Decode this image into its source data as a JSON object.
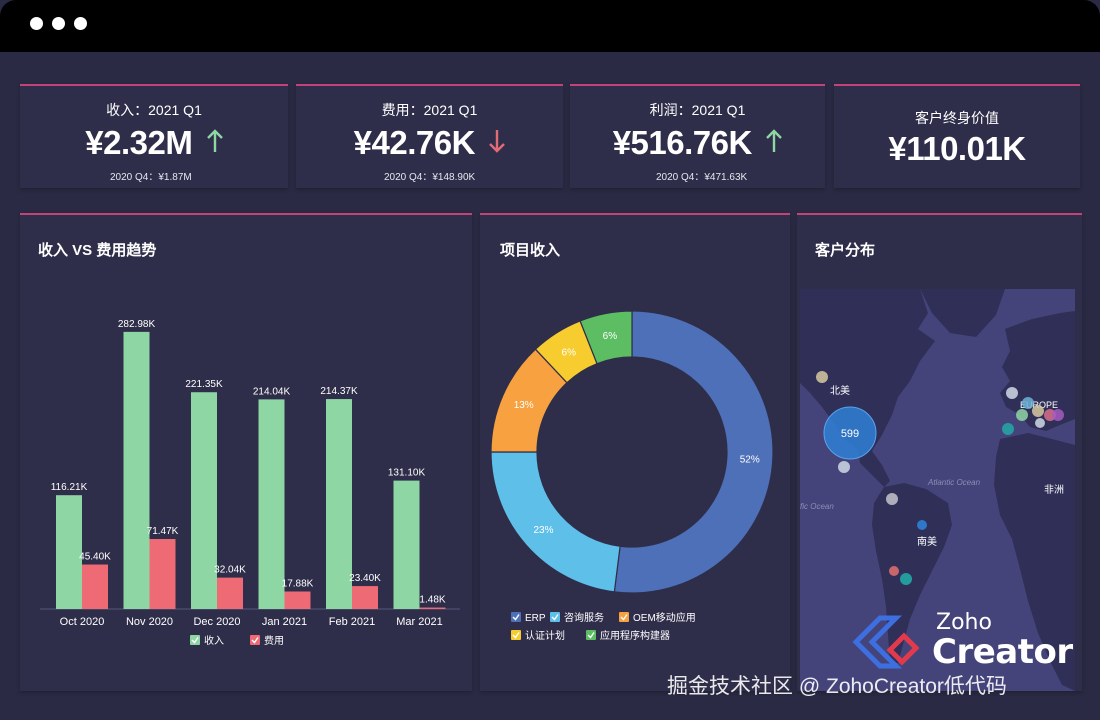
{
  "kpis": [
    {
      "title": "收入：2021 Q1",
      "value": "¥2.32M",
      "trend": "up",
      "prev": "2020 Q4：¥1.87M"
    },
    {
      "title": "费用：2021 Q1",
      "value": "¥42.76K",
      "trend": "down",
      "prev": "2020 Q4：¥148.90K"
    },
    {
      "title": "利润：2021 Q1",
      "value": "¥516.76K",
      "trend": "up",
      "prev": "2020 Q4：¥471.63K"
    },
    {
      "title": "客户终身价值",
      "value": "¥110.01K",
      "trend": "",
      "prev": ""
    }
  ],
  "colors": {
    "up": "#8fd6a5",
    "down": "#e26b76",
    "accent": "#c2427a",
    "income": "#8fd6a5",
    "expense": "#ee6b75"
  },
  "panels": {
    "trend_title": "收入 VS 费用趋势",
    "project_title": "项目收入",
    "map_title": "客户分布"
  },
  "chart_data": [
    {
      "type": "bar",
      "title": "收入 VS 费用趋势",
      "categories": [
        "Oct 2020",
        "Nov 2020",
        "Dec 2020",
        "Jan 2021",
        "Feb 2021",
        "Mar 2021"
      ],
      "series": [
        {
          "name": "收入",
          "values": [
            116.21,
            282.98,
            221.35,
            214.04,
            214.37,
            131.1
          ],
          "labels": [
            "116.21K",
            "282.98K",
            "221.35K",
            "214.04K",
            "214.37K",
            "131.10K"
          ],
          "color": "#8fd6a5"
        },
        {
          "name": "费用",
          "values": [
            45.4,
            71.47,
            32.04,
            17.88,
            23.4,
            1.48
          ],
          "labels": [
            "45.40K",
            "71.47K",
            "32.04K",
            "17.88K",
            "23.40K",
            "1.48K"
          ],
          "color": "#ee6b75"
        }
      ],
      "ylim": [
        0,
        290
      ],
      "legend": "bottom"
    },
    {
      "type": "pie",
      "title": "项目收入",
      "donut": true,
      "slices": [
        {
          "name": "ERP",
          "value": 52,
          "label": "52%",
          "color": "#4e70b8"
        },
        {
          "name": "咨询服务",
          "value": 23,
          "label": "23%",
          "color": "#5ebfe9"
        },
        {
          "name": "OEM移动应用",
          "value": 13,
          "label": "13%",
          "color": "#f7a140"
        },
        {
          "name": "认证计划",
          "value": 6,
          "label": "6%",
          "color": "#f7cc2f"
        },
        {
          "name": "应用程序构建器",
          "value": 6,
          "label": "6%",
          "color": "#5cbd63"
        }
      ],
      "legend": "bottom"
    }
  ],
  "map": {
    "labels": {
      "north_america": "北美",
      "europe": "EUROPE",
      "atlantic": "Atlantic Ocean",
      "pacific": "fic Ocean",
      "africa": "非洲",
      "south_america": "南美"
    },
    "bubble_value": "599"
  },
  "logo": {
    "line1": "Zoho",
    "line2": "Creator"
  },
  "watermark": "掘金技术社区 @ ZohoCreator低代码"
}
